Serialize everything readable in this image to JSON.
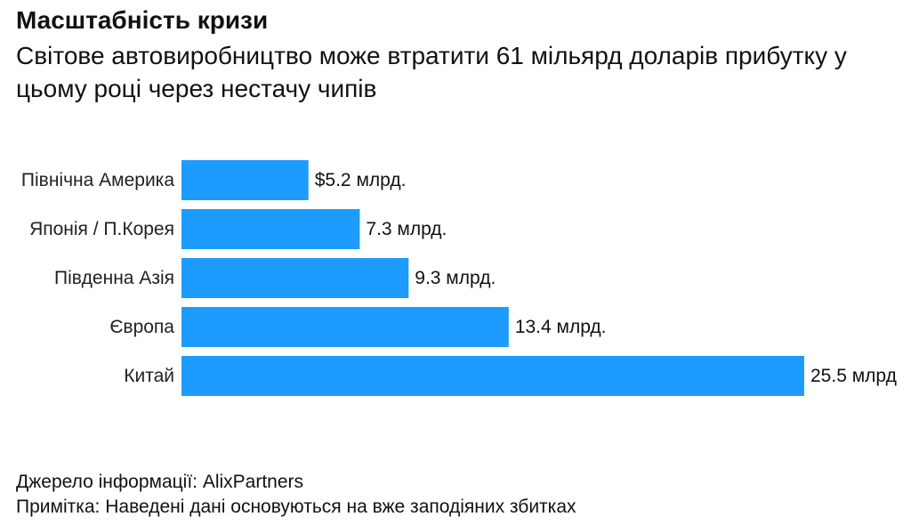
{
  "chart_data": {
    "type": "bar",
    "orientation": "horizontal",
    "title": "Масштабність кризи",
    "subtitle": "Світове автовиробництво може втратити 61 мільярд доларів прибутку у цьому році через нестачу чипів",
    "categories": [
      "Північна Америка",
      "Японія / П.Корея",
      "Південна Азія",
      "Європа",
      "Китай"
    ],
    "values": [
      5.2,
      7.3,
      9.3,
      13.4,
      25.5
    ],
    "data_labels": [
      "$5.2 млрд.",
      "7.3 млрд.",
      "9.3 млрд.",
      "13.4 млрд.",
      "25.5 млрд"
    ],
    "xlabel": "",
    "ylabel": "",
    "xlim": [
      0,
      25.5
    ],
    "grid": false,
    "legend": "none",
    "bar_color": "#1e9bff"
  },
  "footer": {
    "source": "Джерело інформації: AlixPartners",
    "note": "Примітка: Наведені дані основуються на вже заподіяних збитках"
  }
}
